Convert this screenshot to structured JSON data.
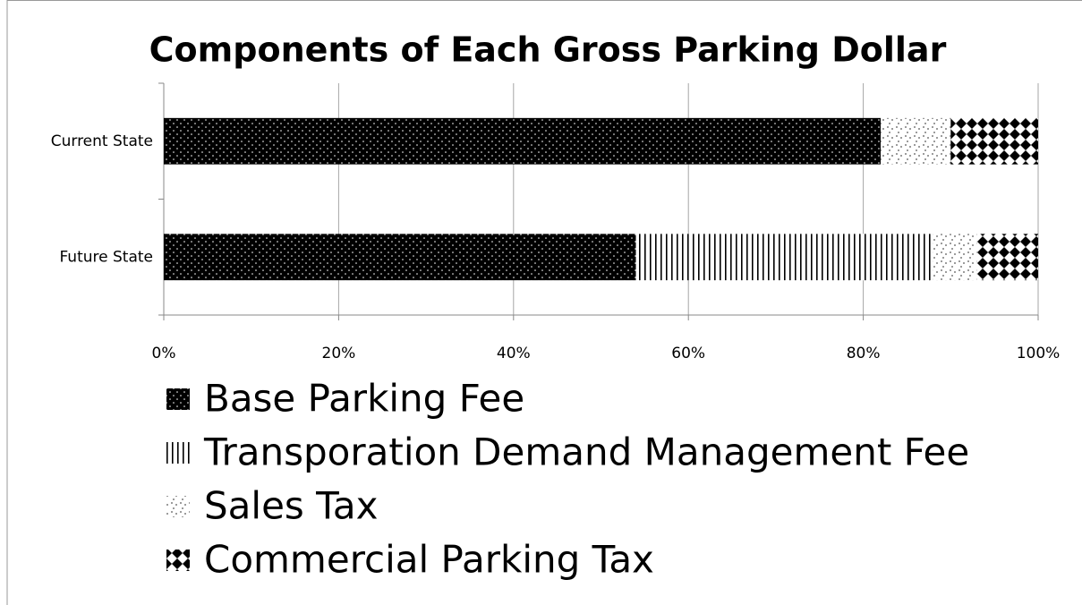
{
  "chart_data": {
    "type": "stacked-bar-horizontal",
    "title": "Components of Each Gross Parking Dollar",
    "categories": [
      "Current State",
      "Future State"
    ],
    "series": [
      {
        "name": "Base Parking Fee",
        "color": "#000000",
        "pattern": "dots",
        "values": [
          82,
          54
        ]
      },
      {
        "name": "Transporation Demand Management Fee",
        "color": "#000000",
        "pattern": "vertical-lines",
        "values": [
          0,
          34
        ]
      },
      {
        "name": "Sales Tax",
        "color": "#000000",
        "pattern": "sparse-dots",
        "values": [
          8,
          5
        ]
      },
      {
        "name": "Commercial Parking Tax",
        "color": "#000000",
        "pattern": "diamonds",
        "values": [
          10,
          7
        ]
      }
    ],
    "xlim": [
      0,
      100
    ],
    "xticks": [
      {
        "value": 0,
        "label": "0%"
      },
      {
        "value": 20,
        "label": "20%"
      },
      {
        "value": 40,
        "label": "40%"
      },
      {
        "value": 60,
        "label": "60%"
      },
      {
        "value": 80,
        "label": "80%"
      },
      {
        "value": 100,
        "label": "100%"
      }
    ],
    "grid": true,
    "legend": "bottom"
  }
}
